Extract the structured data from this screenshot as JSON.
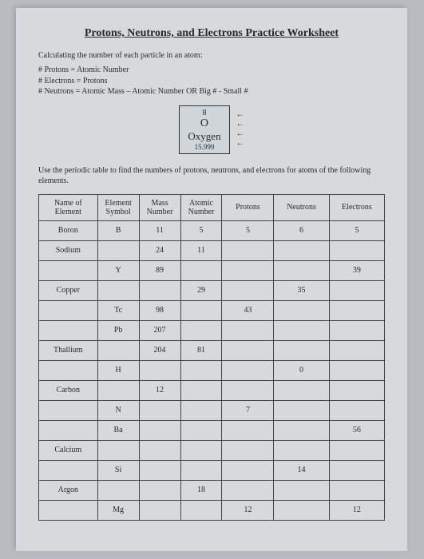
{
  "title": "Protons, Neutrons, and Electrons Practice Worksheet",
  "intro": "Calculating the number of each particle in an atom:",
  "rules": [
    "# Protons = Atomic Number",
    "# Electrons = Protons",
    "# Neutrons = Atomic Mass – Atomic Number  OR  Big # - Small #"
  ],
  "box": {
    "atomic_number": "8",
    "symbol": "O",
    "name": "Oxygen",
    "mass": "15.999"
  },
  "arrows": [
    "←",
    "←",
    "←",
    "←"
  ],
  "use_text": "Use the periodic table to find the numbers of protons, neutrons, and electrons for atoms of the following elements.",
  "headers": {
    "name": "Name of Element",
    "symbol": "Element Symbol",
    "mass": "Mass Number",
    "anum": "Atomic Number",
    "protons": "Protons",
    "neutrons": "Neutrons",
    "electrons": "Electrons"
  },
  "rows": [
    {
      "name": "Boron",
      "symbol": "B",
      "mass": "11",
      "anum": "5",
      "p": "5",
      "n": "6",
      "e": "5"
    },
    {
      "name": "Sodium",
      "symbol": "",
      "mass": "24",
      "anum": "11",
      "p": "",
      "n": "",
      "e": ""
    },
    {
      "name": "",
      "symbol": "Y",
      "mass": "89",
      "anum": "",
      "p": "",
      "n": "",
      "e": "39"
    },
    {
      "name": "Copper",
      "symbol": "",
      "mass": "",
      "anum": "29",
      "p": "",
      "n": "35",
      "e": ""
    },
    {
      "name": "",
      "symbol": "Tc",
      "mass": "98",
      "anum": "",
      "p": "43",
      "n": "",
      "e": ""
    },
    {
      "name": "",
      "symbol": "Pb",
      "mass": "207",
      "anum": "",
      "p": "",
      "n": "",
      "e": ""
    },
    {
      "name": "Thallium",
      "symbol": "",
      "mass": "204",
      "anum": "81",
      "p": "",
      "n": "",
      "e": ""
    },
    {
      "name": "",
      "symbol": "H",
      "mass": "",
      "anum": "",
      "p": "",
      "n": "0",
      "e": ""
    },
    {
      "name": "Carbon",
      "symbol": "",
      "mass": "12",
      "anum": "",
      "p": "",
      "n": "",
      "e": ""
    },
    {
      "name": "",
      "symbol": "N",
      "mass": "",
      "anum": "",
      "p": "7",
      "n": "",
      "e": ""
    },
    {
      "name": "",
      "symbol": "Ba",
      "mass": "",
      "anum": "",
      "p": "",
      "n": "",
      "e": "56"
    },
    {
      "name": "Calcium",
      "symbol": "",
      "mass": "",
      "anum": "",
      "p": "",
      "n": "",
      "e": ""
    },
    {
      "name": "",
      "symbol": "Si",
      "mass": "",
      "anum": "",
      "p": "",
      "n": "14",
      "e": ""
    },
    {
      "name": "Argon",
      "symbol": "",
      "mass": "",
      "anum": "18",
      "p": "",
      "n": "",
      "e": ""
    },
    {
      "name": "",
      "symbol": "Mg",
      "mass": "",
      "anum": "",
      "p": "12",
      "n": "",
      "e": "12"
    }
  ]
}
